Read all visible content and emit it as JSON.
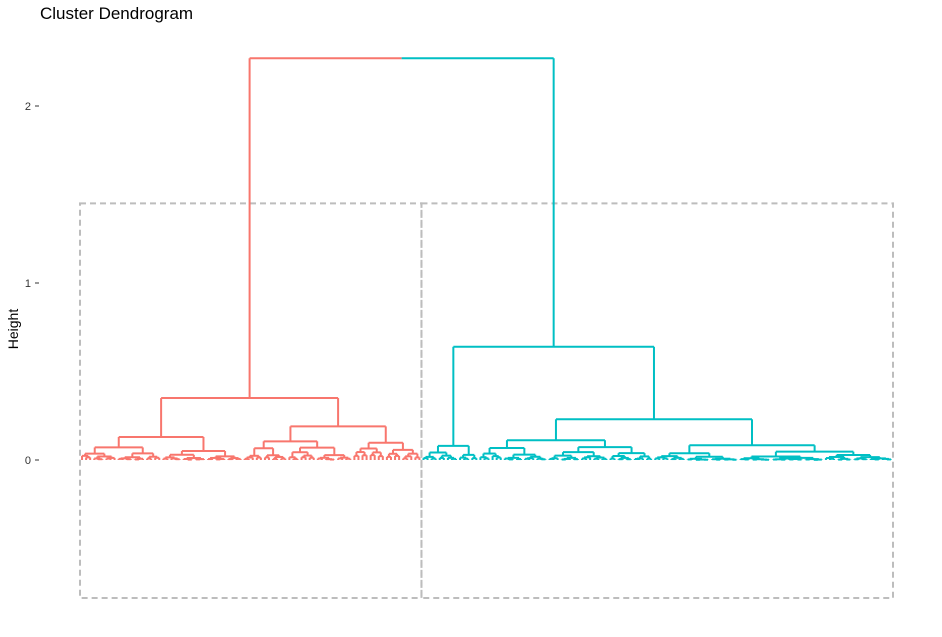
{
  "chart_data": {
    "type": "dendrogram",
    "title": "Cluster Dendrogram",
    "xlabel": "",
    "ylabel": "Height",
    "y_ticks": [
      0,
      1,
      2
    ],
    "ylim": [
      -0.8,
      2.3
    ],
    "grid": false,
    "k_clusters": 2,
    "cluster_colors": [
      "#F8766D",
      "#00BFC4"
    ],
    "rect_border_color": "#bdbdbd",
    "leaf_count": 200,
    "clusters": [
      {
        "color": "#F8766D",
        "leaf_range": [
          1,
          84
        ],
        "merge_height": 0.35,
        "subclusters": [
          {
            "leaf_range": [
              1,
              40
            ],
            "height": 0.13
          },
          {
            "leaf_range": [
              41,
              84
            ],
            "height": 0.19
          }
        ]
      },
      {
        "color": "#00BFC4",
        "leaf_range": [
          85,
          200
        ],
        "merge_height": 0.64,
        "subclusters": [
          {
            "leaf_range": [
              85,
              98
            ],
            "height": 0.08
          },
          {
            "leaf_range": [
              99,
              200
            ],
            "height": 0.23
          }
        ]
      }
    ],
    "root_height": 2.27
  }
}
